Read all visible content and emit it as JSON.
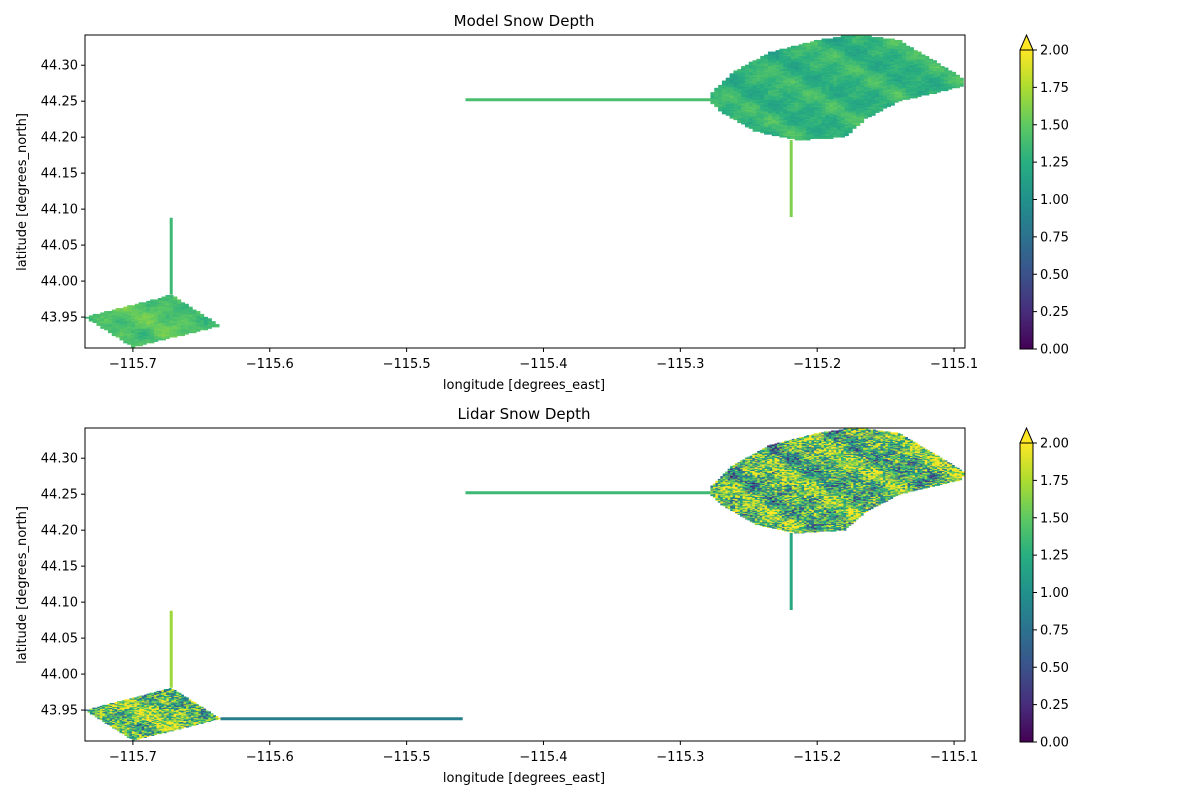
{
  "colormap": "viridis",
  "colorbar": {
    "ticks": [
      "0.00",
      "0.25",
      "0.50",
      "0.75",
      "1.00",
      "1.25",
      "1.50",
      "1.75",
      "2.00"
    ],
    "range": [
      0,
      2
    ],
    "extend": "max"
  },
  "chart_data": [
    {
      "type": "heatmap",
      "title": "Model Snow Depth",
      "xlabel": "longitude [degrees_east]",
      "ylabel": "latitude [degrees_north]",
      "xlim": [
        -115.735,
        -115.092
      ],
      "ylim": [
        43.907,
        44.342
      ],
      "xticks": [
        -115.7,
        -115.6,
        -115.5,
        -115.4,
        -115.3,
        -115.2,
        -115.1
      ],
      "xtick_labels": [
        "−115.7",
        "−115.6",
        "−115.5",
        "−115.4",
        "−115.3",
        "−115.2",
        "−115.1"
      ],
      "yticks": [
        43.95,
        44.0,
        44.05,
        44.1,
        44.15,
        44.2,
        44.25,
        44.3
      ],
      "ytick_labels": [
        "43.95",
        "44.00",
        "44.05",
        "44.10",
        "44.15",
        "44.20",
        "44.25",
        "44.30"
      ],
      "clim": [
        0,
        2
      ],
      "regions": [
        {
          "name": "",
          "mean_value": 1.45,
          "variability": 0.18,
          "outline": [
            [
              -115.735,
              43.95
            ],
            [
              -115.672,
              43.981
            ],
            [
              -115.636,
              43.938
            ],
            [
              -115.7,
              43.908
            ]
          ]
        },
        {
          "name": "",
          "mean_value": 1.3,
          "variability": 0.2,
          "outline": [
            [
              -115.278,
              44.26
            ],
            [
              -115.262,
              44.29
            ],
            [
              -115.235,
              44.318
            ],
            [
              -115.2,
              44.335
            ],
            [
              -115.172,
              44.343
            ],
            [
              -115.14,
              44.335
            ],
            [
              -115.1,
              44.29
            ],
            [
              -115.092,
              44.28
            ],
            [
              -115.095,
              44.27
            ],
            [
              -115.14,
              44.25
            ],
            [
              -115.165,
              44.225
            ],
            [
              -115.18,
              44.2
            ],
            [
              -115.215,
              44.196
            ],
            [
              -115.245,
              44.208
            ],
            [
              -115.27,
              44.235
            ],
            [
              -115.278,
              44.25
            ]
          ]
        }
      ],
      "transects": [
        {
          "name": "",
          "x": [
            -115.457,
            -115.278
          ],
          "y": [
            44.252,
            44.252
          ],
          "value": 1.4
        },
        {
          "name": "",
          "x": [
            -115.219,
            -115.219
          ],
          "y": [
            44.196,
            44.089
          ],
          "value": 1.6
        },
        {
          "name": "",
          "x": [
            -115.672,
            -115.672
          ],
          "y": [
            44.088,
            43.981
          ],
          "value": 1.35
        }
      ]
    },
    {
      "type": "heatmap",
      "title": "Lidar Snow Depth",
      "xlabel": "longitude [degrees_east]",
      "ylabel": "latitude [degrees_north]",
      "xlim": [
        -115.735,
        -115.092
      ],
      "ylim": [
        43.907,
        44.342
      ],
      "xticks": [
        -115.7,
        -115.6,
        -115.5,
        -115.4,
        -115.3,
        -115.2,
        -115.1
      ],
      "xtick_labels": [
        "−115.7",
        "−115.6",
        "−115.5",
        "−115.4",
        "−115.3",
        "−115.2",
        "−115.1"
      ],
      "yticks": [
        43.95,
        44.0,
        44.05,
        44.1,
        44.15,
        44.2,
        44.25,
        44.3
      ],
      "ytick_labels": [
        "43.95",
        "44.00",
        "44.05",
        "44.10",
        "44.15",
        "44.20",
        "44.25",
        "44.30"
      ],
      "clim": [
        0,
        2
      ],
      "regions": [
        {
          "name": "",
          "mean_value": 1.5,
          "variability": 0.6,
          "outline": [
            [
              -115.735,
              43.95
            ],
            [
              -115.672,
              43.981
            ],
            [
              -115.636,
              43.938
            ],
            [
              -115.7,
              43.908
            ]
          ]
        },
        {
          "name": "",
          "mean_value": 1.35,
          "variability": 0.65,
          "outline": [
            [
              -115.278,
              44.26
            ],
            [
              -115.262,
              44.29
            ],
            [
              -115.235,
              44.318
            ],
            [
              -115.2,
              44.335
            ],
            [
              -115.172,
              44.343
            ],
            [
              -115.14,
              44.335
            ],
            [
              -115.1,
              44.29
            ],
            [
              -115.092,
              44.28
            ],
            [
              -115.095,
              44.27
            ],
            [
              -115.14,
              44.25
            ],
            [
              -115.165,
              44.225
            ],
            [
              -115.18,
              44.2
            ],
            [
              -115.215,
              44.196
            ],
            [
              -115.245,
              44.208
            ],
            [
              -115.27,
              44.235
            ],
            [
              -115.278,
              44.25
            ]
          ]
        }
      ],
      "transects": [
        {
          "name": "",
          "x": [
            -115.457,
            -115.278
          ],
          "y": [
            44.252,
            44.252
          ],
          "value": 1.35
        },
        {
          "name": "",
          "x": [
            -115.219,
            -115.219
          ],
          "y": [
            44.196,
            44.089
          ],
          "value": 1.2
        },
        {
          "name": "",
          "x": [
            -115.672,
            -115.672
          ],
          "y": [
            44.088,
            43.981
          ],
          "value": 1.7
        },
        {
          "name": "",
          "x": [
            -115.636,
            -115.459
          ],
          "y": [
            43.938,
            43.938
          ],
          "value": 0.85
        }
      ]
    }
  ]
}
